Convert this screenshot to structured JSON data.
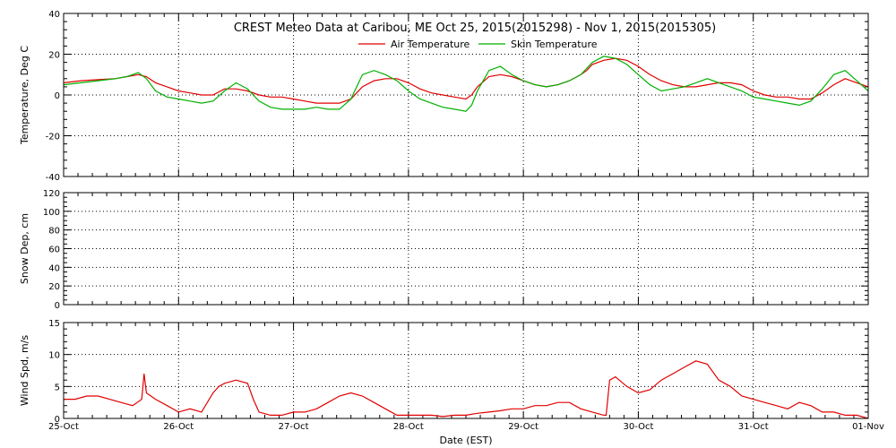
{
  "title": "CREST Meteo Data at Caribou, ME   Oct 25, 2015(2015298) - Nov  1, 2015(2015305)",
  "xlabel": "Date (EST)",
  "x_tick_labels": [
    "25-Oct",
    "26-Oct",
    "27-Oct",
    "28-Oct",
    "29-Oct",
    "30-Oct",
    "31-Oct",
    "01-Nov"
  ],
  "chart_data": [
    {
      "type": "line",
      "ylabel": "Temperature, Deg C",
      "xlim": [
        0,
        7
      ],
      "ylim": [
        -40,
        40
      ],
      "yticks": [
        -40,
        -20,
        0,
        20,
        40
      ],
      "grid": true,
      "legend": "top-center",
      "series": [
        {
          "name": "Air Temperature",
          "color": "#e00000",
          "x": [
            0,
            0.15,
            0.3,
            0.45,
            0.55,
            0.65,
            0.72,
            0.8,
            0.9,
            1.0,
            1.1,
            1.2,
            1.3,
            1.4,
            1.5,
            1.6,
            1.7,
            1.8,
            1.9,
            2.0,
            2.1,
            2.2,
            2.3,
            2.4,
            2.5,
            2.55,
            2.6,
            2.7,
            2.8,
            2.9,
            3.0,
            3.1,
            3.2,
            3.3,
            3.4,
            3.5,
            3.55,
            3.6,
            3.7,
            3.8,
            3.9,
            4.0,
            4.1,
            4.2,
            4.3,
            4.4,
            4.5,
            4.55,
            4.6,
            4.7,
            4.8,
            4.9,
            5.0,
            5.1,
            5.2,
            5.3,
            5.4,
            5.5,
            5.6,
            5.7,
            5.8,
            5.9,
            6.0,
            6.1,
            6.2,
            6.3,
            6.4,
            6.5,
            6.6,
            6.7,
            6.8,
            6.9,
            7.0
          ],
          "y": [
            6,
            7,
            7.5,
            8,
            9,
            10,
            9,
            6,
            4,
            2,
            1,
            0,
            0,
            3,
            3,
            2,
            0,
            -1,
            -1,
            -2,
            -3,
            -4,
            -4,
            -4,
            -2,
            1,
            4,
            7,
            8,
            8,
            6,
            3,
            1,
            0,
            -1,
            -2,
            0,
            4,
            9,
            10,
            9,
            7,
            5,
            4,
            5,
            7,
            10,
            12,
            15,
            17,
            18,
            17,
            14,
            10,
            7,
            5,
            4,
            4,
            5,
            6,
            6,
            5,
            2,
            0,
            -1,
            -1,
            -2,
            -2,
            1,
            5,
            8,
            6,
            4
          ]
        },
        {
          "name": "Skin Temperature",
          "color": "#00b000",
          "x": [
            0,
            0.15,
            0.3,
            0.45,
            0.55,
            0.65,
            0.72,
            0.8,
            0.9,
            1.0,
            1.1,
            1.2,
            1.3,
            1.4,
            1.5,
            1.6,
            1.7,
            1.8,
            1.9,
            2.0,
            2.1,
            2.2,
            2.3,
            2.4,
            2.5,
            2.55,
            2.6,
            2.7,
            2.8,
            2.9,
            3.0,
            3.1,
            3.2,
            3.3,
            3.4,
            3.5,
            3.55,
            3.6,
            3.7,
            3.8,
            3.9,
            4.0,
            4.1,
            4.2,
            4.3,
            4.4,
            4.5,
            4.55,
            4.6,
            4.7,
            4.8,
            4.9,
            5.0,
            5.1,
            5.2,
            5.3,
            5.4,
            5.5,
            5.6,
            5.7,
            5.8,
            5.9,
            6.0,
            6.1,
            6.2,
            6.3,
            6.4,
            6.5,
            6.6,
            6.7,
            6.8,
            6.9,
            7.0
          ],
          "y": [
            5,
            6,
            7,
            8,
            9,
            11,
            8,
            2,
            -1,
            -2,
            -3,
            -4,
            -3,
            2,
            6,
            3,
            -3,
            -6,
            -7,
            -7,
            -7,
            -6,
            -7,
            -7,
            -2,
            4,
            10,
            12,
            10,
            7,
            2,
            -2,
            -4,
            -6,
            -7,
            -8,
            -5,
            2,
            12,
            14,
            10,
            7,
            5,
            4,
            5,
            7,
            10,
            13,
            16,
            19,
            18,
            15,
            10,
            5,
            2,
            3,
            4,
            6,
            8,
            6,
            4,
            2,
            -1,
            -2,
            -3,
            -4,
            -5,
            -3,
            3,
            10,
            12,
            7,
            2
          ]
        }
      ]
    },
    {
      "type": "line",
      "ylabel": "Snow Dep, cm",
      "xlim": [
        0,
        7
      ],
      "ylim": [
        0,
        120
      ],
      "yticks": [
        0,
        20,
        40,
        60,
        80,
        100,
        120
      ],
      "grid": true,
      "series": []
    },
    {
      "type": "line",
      "ylabel": "Wind Spd, m/s",
      "xlim": [
        0,
        7
      ],
      "ylim": [
        0,
        15
      ],
      "yticks": [
        0,
        5,
        10,
        15
      ],
      "grid": true,
      "series": [
        {
          "color": "#e00000",
          "x": [
            0,
            0.1,
            0.2,
            0.3,
            0.4,
            0.5,
            0.6,
            0.68,
            0.7,
            0.72,
            0.8,
            0.9,
            1.0,
            1.1,
            1.2,
            1.3,
            1.35,
            1.4,
            1.5,
            1.6,
            1.65,
            1.7,
            1.8,
            1.9,
            2.0,
            2.1,
            2.2,
            2.3,
            2.4,
            2.5,
            2.6,
            2.7,
            2.8,
            2.9,
            3.0,
            3.1,
            3.2,
            3.3,
            3.4,
            3.5,
            3.6,
            3.7,
            3.8,
            3.9,
            4.0,
            4.1,
            4.2,
            4.3,
            4.4,
            4.5,
            4.6,
            4.7,
            4.72,
            4.75,
            4.8,
            4.9,
            5.0,
            5.1,
            5.2,
            5.3,
            5.4,
            5.5,
            5.6,
            5.7,
            5.8,
            5.9,
            6.0,
            6.1,
            6.2,
            6.3,
            6.4,
            6.5,
            6.6,
            6.7,
            6.8,
            6.9,
            7.0
          ],
          "y": [
            3,
            3,
            3.5,
            3.5,
            3,
            2.5,
            2,
            3,
            7,
            4,
            3,
            2,
            1,
            1.5,
            1,
            4,
            5,
            5.5,
            6,
            5.5,
            3,
            1,
            0.5,
            0.5,
            1,
            1,
            1.5,
            2.5,
            3.5,
            4,
            3.5,
            2.5,
            1.5,
            0.5,
            0.5,
            0.5,
            0.5,
            0.3,
            0.5,
            0.5,
            0.8,
            1,
            1.2,
            1.5,
            1.5,
            2,
            2,
            2.5,
            2.5,
            1.5,
            1,
            0.5,
            0.5,
            6,
            6.5,
            5,
            4,
            4.5,
            6,
            7,
            8,
            9,
            8.5,
            6,
            5,
            3.5,
            3,
            2.5,
            2,
            1.5,
            2.5,
            2,
            1,
            1,
            0.5,
            0.5,
            0
          ]
        }
      ]
    }
  ]
}
